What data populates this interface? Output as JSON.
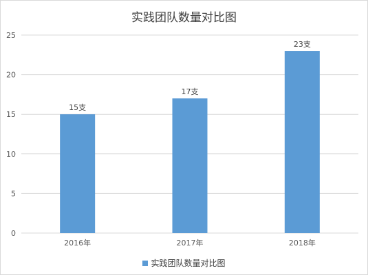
{
  "chart_data": {
    "type": "bar",
    "title": "实践团队数量对比图",
    "categories": [
      "2016年",
      "2017年",
      "2018年"
    ],
    "series": [
      {
        "name": "实践团队数量对比图",
        "values": [
          15,
          17,
          23
        ],
        "data_labels": [
          "15支",
          "17支",
          "23支"
        ]
      }
    ],
    "y_ticks": [
      "0",
      "5",
      "10",
      "15",
      "20",
      "25"
    ],
    "ylim": [
      0,
      25
    ],
    "xlabel": "",
    "ylabel": "",
    "grid": true,
    "legend_position": "bottom"
  },
  "colors": {
    "bar": "#5b9bd5",
    "grid": "#d9d9d9",
    "text": "#595959"
  }
}
